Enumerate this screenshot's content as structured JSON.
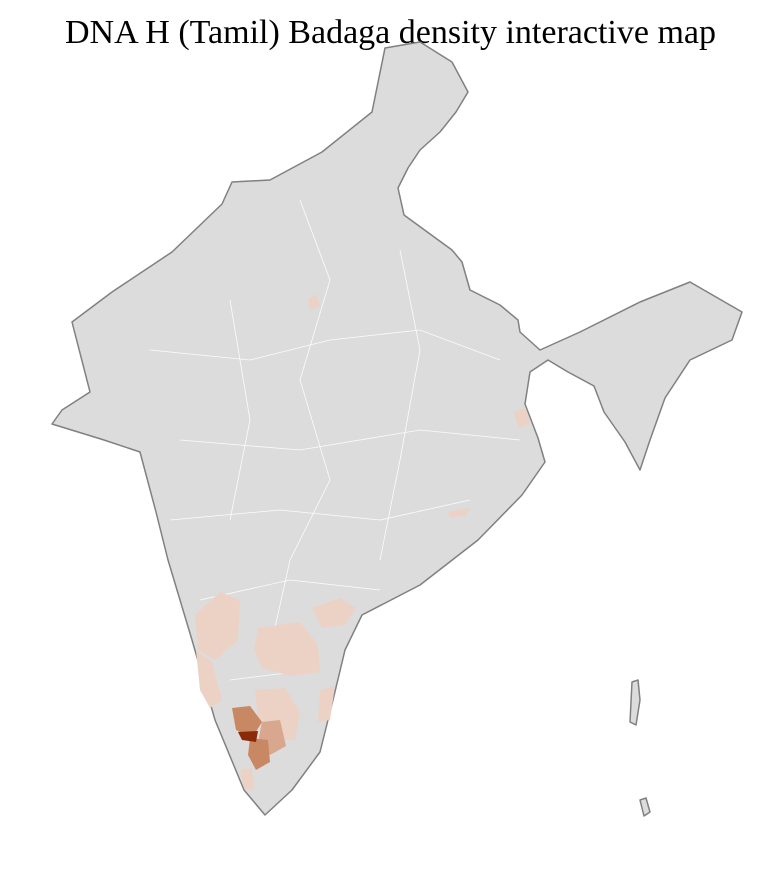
{
  "title": "DNA H (Tamil) Badaga density interactive map",
  "colors": {
    "base": "#dcdcdc",
    "border": "#808080",
    "district_line": "#ffffff",
    "density_low": "#ecd2c4",
    "density_mid": "#d9a78d",
    "density_high": "#c98864",
    "density_max": "#8b2a08"
  },
  "regions": [
    {
      "name": "nilgiris",
      "level": "max"
    },
    {
      "name": "coimbatore",
      "level": "high"
    },
    {
      "name": "mysuru-area",
      "level": "high"
    },
    {
      "name": "tiruppur-area",
      "level": "mid"
    },
    {
      "name": "south-karnataka",
      "level": "low"
    },
    {
      "name": "anantapur-kurnool",
      "level": "low"
    },
    {
      "name": "nellore",
      "level": "low"
    },
    {
      "name": "west-coast",
      "level": "low"
    },
    {
      "name": "north-karnataka",
      "level": "low"
    },
    {
      "name": "krishna",
      "level": "low"
    },
    {
      "name": "kerala-south",
      "level": "low"
    },
    {
      "name": "uttar-pradesh-spot",
      "level": "low"
    },
    {
      "name": "west-bengal-spot",
      "level": "low"
    },
    {
      "name": "odisha-spot",
      "level": "low"
    }
  ]
}
